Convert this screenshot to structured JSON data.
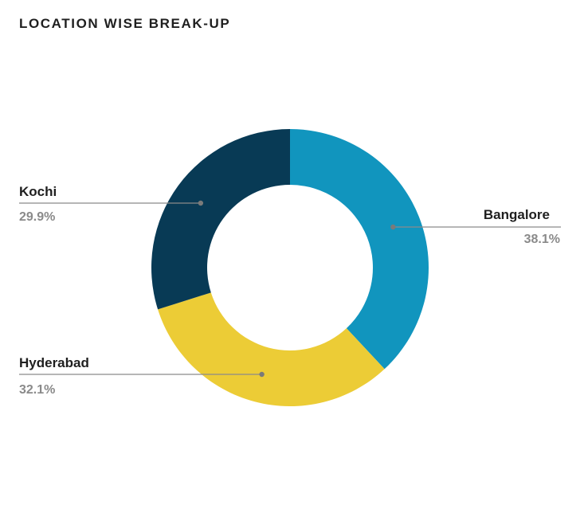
{
  "chart_data": {
    "type": "pie",
    "title": "LOCATION WISE BREAK-UP",
    "categories": [
      "Bangalore",
      "Hyderabad",
      "Kochi"
    ],
    "values": [
      38.1,
      32.1,
      29.9
    ],
    "value_labels": [
      "38.1%",
      "32.1%",
      "29.9%"
    ],
    "colors": [
      "#1195be",
      "#eccc36",
      "#083a55"
    ],
    "donut": true
  }
}
